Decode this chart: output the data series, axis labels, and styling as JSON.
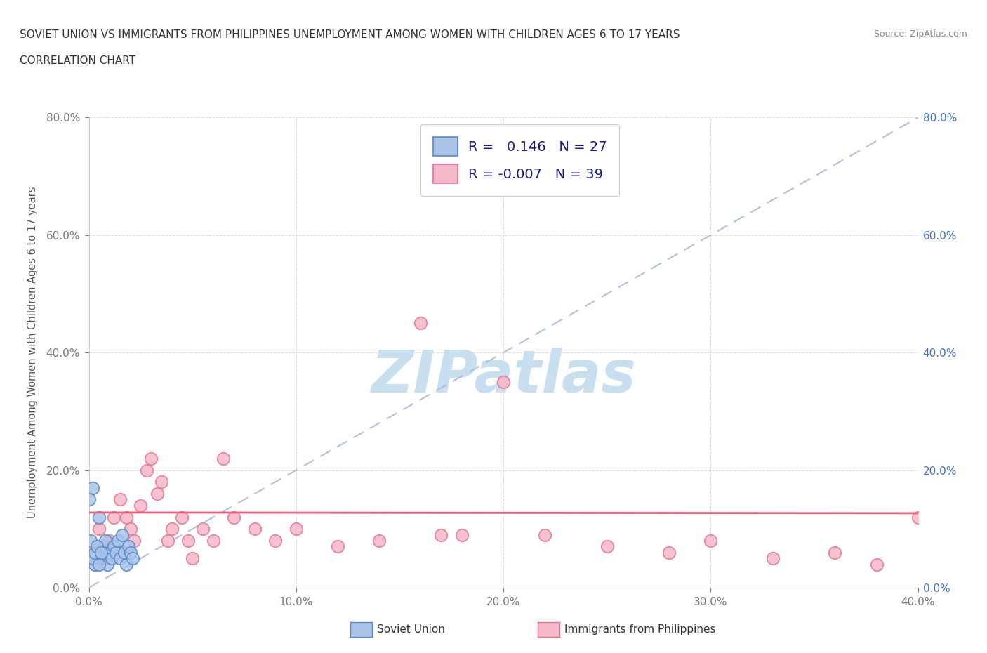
{
  "title_line1": "SOVIET UNION VS IMMIGRANTS FROM PHILIPPINES UNEMPLOYMENT AMONG WOMEN WITH CHILDREN AGES 6 TO 17 YEARS",
  "title_line2": "CORRELATION CHART",
  "source": "Source: ZipAtlas.com",
  "ylabel": "Unemployment Among Women with Children Ages 6 to 17 years",
  "xlim": [
    0.0,
    0.4
  ],
  "ylim": [
    0.0,
    0.8
  ],
  "xticks": [
    0.0,
    0.1,
    0.2,
    0.3,
    0.4
  ],
  "yticks": [
    0.0,
    0.2,
    0.4,
    0.6,
    0.8
  ],
  "xtick_labels": [
    "0.0%",
    "10.0%",
    "20.0%",
    "30.0%",
    "40.0%"
  ],
  "ytick_labels": [
    "0.0%",
    "20.0%",
    "40.0%",
    "60.0%",
    "80.0%"
  ],
  "right_ytick_labels": [
    "0.0%",
    "20.0%",
    "40.0%",
    "60.0%",
    "80.0%"
  ],
  "soviet_color": "#aac4e8",
  "soviet_edge_color": "#5588cc",
  "philippines_color": "#f4b8c8",
  "philippines_edge_color": "#e87090",
  "diag_line_color": "#aabbdd",
  "trend_line_color_phil": "#e8607a",
  "soviet_R": 0.146,
  "soviet_N": 27,
  "phil_R": -0.007,
  "phil_N": 39,
  "watermark_text": "ZIPatlas",
  "watermark_color": "#c8dff0",
  "legend_label_soviet": "Soviet Union",
  "legend_label_phil": "Immigrants from Philippines",
  "soviet_x": [
    0.002,
    0.003,
    0.004,
    0.005,
    0.006,
    0.007,
    0.008,
    0.009,
    0.01,
    0.011,
    0.012,
    0.013,
    0.014,
    0.015,
    0.016,
    0.017,
    0.018,
    0.019,
    0.02,
    0.021,
    0.0,
    0.001,
    0.002,
    0.003,
    0.004,
    0.005,
    0.006
  ],
  "soviet_y": [
    0.17,
    0.04,
    0.06,
    0.12,
    0.05,
    0.07,
    0.08,
    0.04,
    0.06,
    0.05,
    0.07,
    0.06,
    0.08,
    0.05,
    0.09,
    0.06,
    0.04,
    0.07,
    0.06,
    0.05,
    0.15,
    0.08,
    0.05,
    0.06,
    0.07,
    0.04,
    0.06
  ],
  "phil_x": [
    0.005,
    0.008,
    0.01,
    0.012,
    0.015,
    0.018,
    0.02,
    0.022,
    0.025,
    0.028,
    0.03,
    0.033,
    0.035,
    0.038,
    0.04,
    0.045,
    0.048,
    0.05,
    0.055,
    0.06,
    0.07,
    0.08,
    0.09,
    0.1,
    0.12,
    0.14,
    0.16,
    0.18,
    0.2,
    0.22,
    0.25,
    0.28,
    0.3,
    0.33,
    0.36,
    0.38,
    0.4,
    0.17,
    0.065
  ],
  "phil_y": [
    0.1,
    0.05,
    0.08,
    0.12,
    0.15,
    0.12,
    0.1,
    0.08,
    0.14,
    0.2,
    0.22,
    0.16,
    0.18,
    0.08,
    0.1,
    0.12,
    0.08,
    0.05,
    0.1,
    0.08,
    0.12,
    0.1,
    0.08,
    0.1,
    0.07,
    0.08,
    0.45,
    0.09,
    0.35,
    0.09,
    0.07,
    0.06,
    0.08,
    0.05,
    0.06,
    0.04,
    0.12,
    0.09,
    0.22
  ],
  "phil_trend_intercept": 0.128,
  "phil_trend_slope": -0.003
}
